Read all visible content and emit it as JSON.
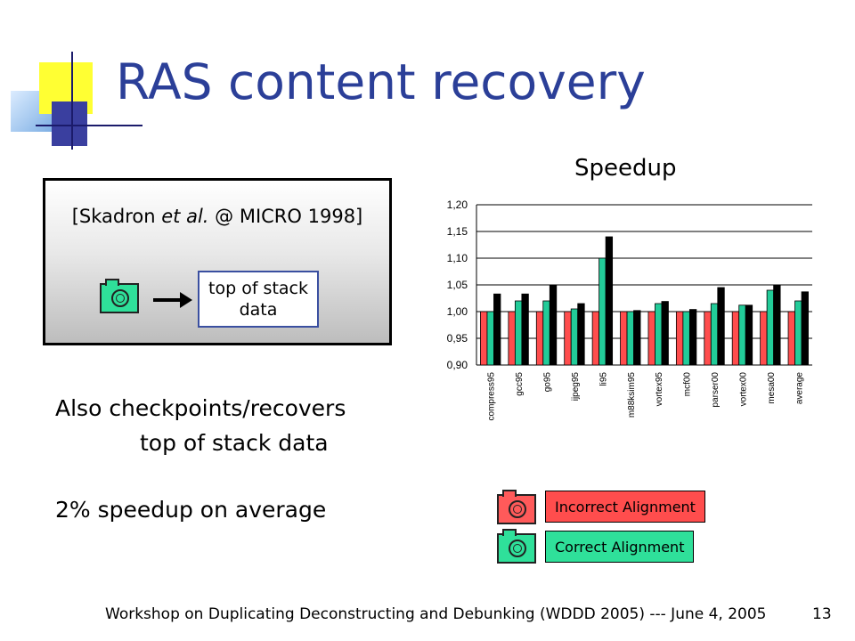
{
  "slide": {
    "title": "RAS content recovery",
    "citation_prefix": "[Skadron ",
    "citation_italic": "et al.",
    "citation_suffix": " @ MICRO 1998]",
    "box_label_line1": "top of stack",
    "box_label_line2": "data",
    "body_line1": "Also checkpoints/recovers",
    "body_line2": "top of stack data",
    "body_line3": "2% speedup on average",
    "legend_incorrect": "Incorrect Alignment",
    "legend_correct": "Correct Alignment",
    "footer": "Workshop on Duplicating Deconstructing and Debunking (WDDD 2005) --- June 4, 2005",
    "page_number": "13"
  },
  "chart_data": {
    "type": "bar",
    "title": "Speedup",
    "categories": [
      "compress95",
      "gcc95",
      "go95",
      "ijpeg95",
      "li95",
      "m88ksim95",
      "vortex95",
      "mcf00",
      "parser00",
      "vortex00",
      "mesa00",
      "average"
    ],
    "series": [
      {
        "color": "#ff4d4d",
        "values": [
          1.0,
          1.0,
          1.0,
          1.0,
          1.0,
          1.0,
          1.0,
          1.0,
          1.0,
          1.0,
          1.0,
          1.0
        ]
      },
      {
        "color": "#22cc99",
        "values": [
          1.0,
          1.02,
          1.02,
          1.005,
          1.1,
          1.0,
          1.015,
          1.0,
          1.015,
          1.012,
          1.04,
          1.02
        ]
      },
      {
        "color": "#000000",
        "values": [
          1.033,
          1.033,
          1.05,
          1.015,
          1.14,
          1.002,
          1.019,
          1.004,
          1.045,
          1.012,
          1.05,
          1.037
        ]
      }
    ],
    "yticks": [
      "0,90",
      "0,95",
      "1,00",
      "1,05",
      "1,10",
      "1,15",
      "1,20"
    ],
    "ylim": [
      0.9,
      1.2
    ],
    "grid": true
  }
}
